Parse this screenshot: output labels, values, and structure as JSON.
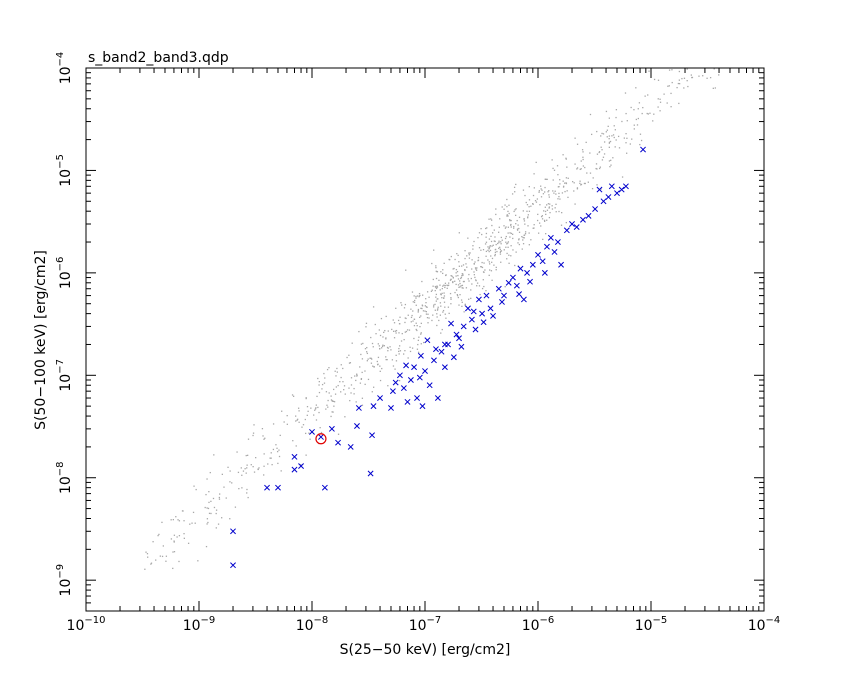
{
  "chart_data": {
    "type": "scatter",
    "title": "s_band2_band3.qdp",
    "xlabel": "S(25−50 keV) [erg/cm2]",
    "ylabel": "S(50−100 keV) [erg/cm2]",
    "xscale": "log",
    "yscale": "log",
    "xlim": [
      1e-10,
      0.0001
    ],
    "ylim": [
      5e-10,
      0.0001
    ],
    "grid": false,
    "x_ticks": [
      {
        "base": "10",
        "exp": "−10",
        "value": 1e-10
      },
      {
        "base": "10",
        "exp": "−9",
        "value": 1e-09
      },
      {
        "base": "10",
        "exp": "−8",
        "value": 1e-08
      },
      {
        "base": "10",
        "exp": "−7",
        "value": 1e-07
      },
      {
        "base": "10",
        "exp": "−6",
        "value": 1e-06
      },
      {
        "base": "10",
        "exp": "−5",
        "value": 1e-05
      },
      {
        "base": "10",
        "exp": "−4",
        "value": 0.0001
      }
    ],
    "y_ticks": [
      {
        "base": "10",
        "exp": "−9",
        "value": 1e-09
      },
      {
        "base": "10",
        "exp": "−8",
        "value": 1e-08
      },
      {
        "base": "10",
        "exp": "−7",
        "value": 1e-07
      },
      {
        "base": "10",
        "exp": "−6",
        "value": 1e-06
      },
      {
        "base": "10",
        "exp": "−5",
        "value": 1e-05
      },
      {
        "base": "10",
        "exp": "−4",
        "value": 0.0001
      }
    ],
    "series": [
      {
        "marker": "dot",
        "color": "#a8a8a8",
        "generated_cloud": {
          "count": 1100,
          "log_x_range": [
            -9.5,
            -4.35
          ],
          "slope": 1.0,
          "log_y_offset": 0.65,
          "scatter_dex": 0.17
        }
      },
      {
        "marker": "x",
        "color": "#0000cc",
        "points": [
          [
            2e-09,
            1.4e-09
          ],
          [
            2e-09,
            3e-09
          ],
          [
            4e-09,
            8e-09
          ],
          [
            5e-09,
            8e-09
          ],
          [
            7e-09,
            1.2e-08
          ],
          [
            7e-09,
            1.6e-08
          ],
          [
            8e-09,
            1.3e-08
          ],
          [
            1e-08,
            2.8e-08
          ],
          [
            1.2e-08,
            2.5e-08
          ],
          [
            1.3e-08,
            8e-09
          ],
          [
            1.5e-08,
            3e-08
          ],
          [
            1.7e-08,
            2.2e-08
          ],
          [
            2.2e-08,
            2e-08
          ],
          [
            2.5e-08,
            3.2e-08
          ],
          [
            2.6e-08,
            4.8e-08
          ],
          [
            3.3e-08,
            1.1e-08
          ],
          [
            3.4e-08,
            2.6e-08
          ],
          [
            3.5e-08,
            5e-08
          ],
          [
            4e-08,
            6e-08
          ],
          [
            5e-08,
            4.8e-08
          ],
          [
            5.2e-08,
            7e-08
          ],
          [
            5.5e-08,
            8.5e-08
          ],
          [
            6e-08,
            1e-07
          ],
          [
            6.5e-08,
            7.5e-08
          ],
          [
            7e-08,
            5.5e-08
          ],
          [
            7.5e-08,
            9e-08
          ],
          [
            8e-08,
            1.2e-07
          ],
          [
            8.5e-08,
            6e-08
          ],
          [
            9e-08,
            9.5e-08
          ],
          [
            9.5e-08,
            5e-08
          ],
          [
            1e-07,
            1.1e-07
          ],
          [
            1.05e-07,
            2.2e-07
          ],
          [
            1.1e-07,
            8e-08
          ],
          [
            1.2e-07,
            1.4e-07
          ],
          [
            1.3e-07,
            6e-08
          ],
          [
            1.4e-07,
            1.7e-07
          ],
          [
            1.5e-07,
            1.2e-07
          ],
          [
            1.6e-07,
            2e-07
          ],
          [
            1.7e-07,
            3.2e-07
          ],
          [
            1.8e-07,
            1.5e-07
          ],
          [
            1.9e-07,
            2.5e-07
          ],
          [
            2e-07,
            2.3e-07
          ],
          [
            2.2e-07,
            3e-07
          ],
          [
            2.4e-07,
            4.5e-07
          ],
          [
            2.6e-07,
            3.5e-07
          ],
          [
            2.8e-07,
            2.8e-07
          ],
          [
            3e-07,
            5.5e-07
          ],
          [
            3.2e-07,
            4e-07
          ],
          [
            3.5e-07,
            6e-07
          ],
          [
            3.8e-07,
            4.5e-07
          ],
          [
            4e-07,
            3.8e-07
          ],
          [
            4.5e-07,
            7e-07
          ],
          [
            5e-07,
            6e-07
          ],
          [
            5.5e-07,
            8e-07
          ],
          [
            6e-07,
            9e-07
          ],
          [
            6.5e-07,
            7.5e-07
          ],
          [
            7e-07,
            1.1e-06
          ],
          [
            7.5e-07,
            5.5e-07
          ],
          [
            8e-07,
            1e-06
          ],
          [
            9e-07,
            1.2e-06
          ],
          [
            1e-06,
            1.5e-06
          ],
          [
            1.1e-06,
            1.3e-06
          ],
          [
            1.2e-06,
            1.8e-06
          ],
          [
            1.3e-06,
            2.2e-06
          ],
          [
            1.4e-06,
            1.6e-06
          ],
          [
            1.6e-06,
            1.2e-06
          ],
          [
            1.8e-06,
            2.6e-06
          ],
          [
            2e-06,
            3e-06
          ],
          [
            2.2e-06,
            2.8e-06
          ],
          [
            2.5e-06,
            3.3e-06
          ],
          [
            2.8e-06,
            3.6e-06
          ],
          [
            3.2e-06,
            4.2e-06
          ],
          [
            3.5e-06,
            6.5e-06
          ],
          [
            3.8e-06,
            5e-06
          ],
          [
            4.2e-06,
            5.5e-06
          ],
          [
            4.5e-06,
            7e-06
          ],
          [
            5e-06,
            6e-06
          ],
          [
            5.5e-06,
            6.5e-06
          ],
          [
            6e-06,
            7e-06
          ],
          [
            8.5e-06,
            1.6e-05
          ],
          [
            1.5e-07,
            2e-07
          ],
          [
            2.1e-07,
            1.9e-07
          ],
          [
            2.7e-07,
            4.2e-07
          ],
          [
            3.3e-07,
            3.3e-07
          ],
          [
            4.8e-07,
            5.2e-07
          ],
          [
            6.8e-07,
            6.2e-07
          ],
          [
            8.5e-07,
            8.2e-07
          ],
          [
            1.15e-06,
            1e-06
          ],
          [
            1.5e-06,
            2e-06
          ],
          [
            9.2e-08,
            1.55e-07
          ],
          [
            6.8e-08,
            1.25e-07
          ],
          [
            1.25e-07,
            1.8e-07
          ]
        ]
      },
      {
        "marker": "circle",
        "color": "#e00000",
        "points": [
          [
            1.2e-08,
            2.4e-08
          ]
        ]
      }
    ]
  }
}
